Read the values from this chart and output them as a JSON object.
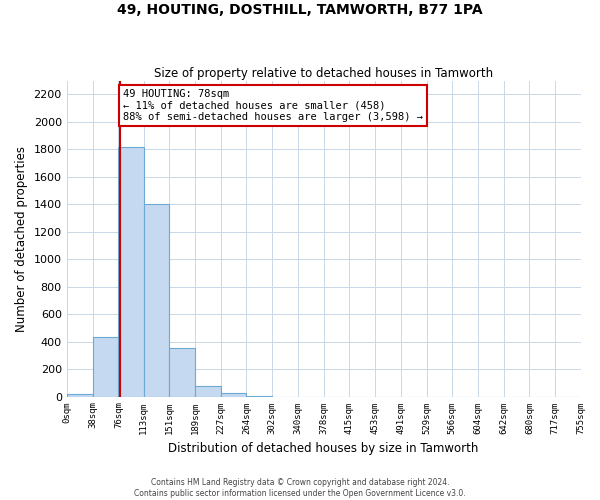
{
  "title": "49, HOUTING, DOSTHILL, TAMWORTH, B77 1PA",
  "subtitle": "Size of property relative to detached houses in Tamworth",
  "xlabel": "Distribution of detached houses by size in Tamworth",
  "ylabel": "Number of detached properties",
  "bin_edges": [
    0,
    38,
    76,
    113,
    151,
    189,
    227,
    264,
    302,
    340,
    378,
    415,
    453,
    491,
    529,
    566,
    604,
    642,
    680,
    717,
    755
  ],
  "bin_counts": [
    20,
    430,
    1820,
    1400,
    350,
    80,
    25,
    5,
    0,
    0,
    0,
    0,
    0,
    0,
    0,
    0,
    0,
    0,
    0,
    0
  ],
  "bar_color": "#c5d9f0",
  "bar_edge_color": "#6aaad4",
  "property_size": 78,
  "property_line_color": "#cc0000",
  "annotation_line1": "49 HOUTING: 78sqm",
  "annotation_line2": "← 11% of detached houses are smaller (458)",
  "annotation_line3": "88% of semi-detached houses are larger (3,598) →",
  "annotation_box_color": "#ffffff",
  "annotation_box_edge_color": "#cc0000",
  "ylim": [
    0,
    2300
  ],
  "yticks": [
    0,
    200,
    400,
    600,
    800,
    1000,
    1200,
    1400,
    1600,
    1800,
    2000,
    2200
  ],
  "tick_labels": [
    "0sqm",
    "38sqm",
    "76sqm",
    "113sqm",
    "151sqm",
    "189sqm",
    "227sqm",
    "264sqm",
    "302sqm",
    "340sqm",
    "378sqm",
    "415sqm",
    "453sqm",
    "491sqm",
    "529sqm",
    "566sqm",
    "604sqm",
    "642sqm",
    "680sqm",
    "717sqm",
    "755sqm"
  ],
  "footnote1": "Contains HM Land Registry data © Crown copyright and database right 2024.",
  "footnote2": "Contains public sector information licensed under the Open Government Licence v3.0.",
  "background_color": "#ffffff",
  "grid_color": "#c8d8e8"
}
